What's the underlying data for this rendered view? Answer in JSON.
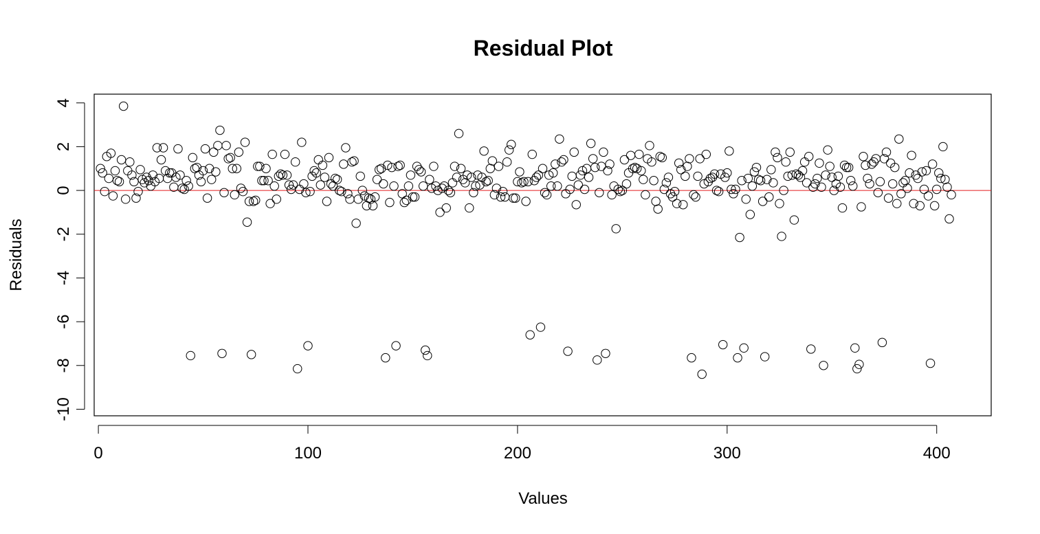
{
  "chart_data": {
    "type": "scatter",
    "title": "Residual Plot",
    "xlabel": "Values",
    "ylabel": "Residuals",
    "xlim": [
      -2,
      426
    ],
    "ylim": [
      -10.3,
      4.4
    ],
    "xticks": [
      0,
      100,
      200,
      300,
      400
    ],
    "xtick_labels": [
      "0",
      "100",
      "200",
      "300",
      "400"
    ],
    "yticks": [
      -10,
      -8,
      -6,
      -4,
      -2,
      0,
      2,
      4
    ],
    "ytick_labels": [
      "-10",
      "-8",
      "-6",
      "-4",
      "-2",
      "0",
      "2",
      "4"
    ],
    "reference_line": {
      "y": 0,
      "color": "#e31a1c"
    },
    "marker": "open-circle",
    "grid": false,
    "colors": {
      "points": "#000000",
      "reference": "#e31a1c"
    },
    "y": [
      1.0,
      0.8,
      -0.05,
      1.55,
      0.55,
      1.7,
      -0.25,
      0.9,
      0.45,
      0.4,
      1.4,
      3.85,
      -0.4,
      0.9,
      1.3,
      0.7,
      0.4,
      -0.35,
      -0.05,
      0.95,
      0.5,
      0.35,
      0.6,
      0.45,
      0.2,
      0.7,
      0.4,
      1.95,
      0.55,
      1.4,
      1.95,
      0.9,
      0.55,
      0.8,
      0.8,
      0.15,
      0.6,
      1.9,
      0.7,
      0.1,
      0.05,
      0.45,
      0.2,
      -7.55,
      1.5,
      1.0,
      1.05,
      0.7,
      0.4,
      0.9,
      1.9,
      -0.35,
      1.0,
      0.5,
      1.75,
      0.85,
      2.05,
      2.75,
      -7.45,
      -0.1,
      2.05,
      1.45,
      1.5,
      1.0,
      -0.2,
      1.0,
      1.75,
      0.1,
      -0.05,
      2.2,
      -1.45,
      -0.5,
      -7.5,
      -0.5,
      -0.45,
      1.1,
      1.1,
      0.45,
      0.45,
      1.0,
      0.45,
      -0.6,
      1.65,
      0.2,
      -0.4,
      0.65,
      0.75,
      0.7,
      1.65,
      0.7,
      0.25,
      0.05,
      0.25,
      1.3,
      -8.15,
      0.05,
      2.2,
      0.3,
      -0.1,
      -7.1,
      -0.05,
      0.65,
      0.9,
      0.8,
      1.4,
      0.25,
      1.15,
      0.6,
      -0.5,
      1.5,
      0.3,
      0.2,
      0.55,
      0.5,
      0.0,
      -0.05,
      1.2,
      1.95,
      -0.15,
      -0.4,
      1.3,
      1.35,
      -1.5,
      -0.4,
      0.65,
      0.0,
      -0.25,
      -0.7,
      -0.35,
      -0.4,
      -0.7,
      -0.3,
      0.5,
      0.95,
      1.0,
      0.3,
      -7.65,
      1.15,
      -0.55,
      1.05,
      0.2,
      -7.1,
      1.1,
      1.15,
      -0.15,
      -0.55,
      -0.45,
      0.2,
      0.7,
      -0.3,
      -0.3,
      1.1,
      0.95,
      0.85,
      0.2,
      -7.3,
      -7.55,
      0.5,
      0.1,
      1.1,
      0.2,
      0.0,
      -1.0,
      0.1,
      0.2,
      -0.8,
      0.0,
      -0.1,
      0.35,
      1.1,
      0.6,
      2.6,
      1.0,
      0.5,
      0.35,
      0.7,
      -0.8,
      0.6,
      -0.1,
      0.2,
      0.7,
      0.25,
      0.6,
      1.8,
      0.4,
      0.45,
      1.0,
      1.35,
      -0.2,
      0.1,
      1.1,
      -0.3,
      -0.05,
      -0.3,
      1.3,
      1.85,
      2.1,
      -0.35,
      -0.35,
      0.4,
      0.85,
      0.35,
      0.4,
      -0.5,
      0.4,
      -6.6,
      1.65,
      0.45,
      0.6,
      0.7,
      -6.25,
      1.0,
      -0.1,
      -0.2,
      0.7,
      0.2,
      0.8,
      1.2,
      0.2,
      2.35,
      1.3,
      1.4,
      -0.15,
      -7.35,
      0.05,
      0.65,
      1.75,
      -0.65,
      0.25,
      0.7,
      0.9,
      0.05,
      1.0,
      0.6,
      2.15,
      1.45,
      1.05,
      -7.75,
      -0.1,
      1.1,
      1.75,
      -7.45,
      0.9,
      1.2,
      -0.2,
      0.2,
      -1.75,
      0.05,
      -0.05,
      0.0,
      1.4,
      0.3,
      0.8,
      1.6,
      1.0,
      1.05,
      1.0,
      1.65,
      0.9,
      0.5,
      -0.2,
      1.45,
      2.05,
      1.3,
      0.45,
      -0.5,
      -0.85,
      1.55,
      1.5,
      0.05,
      0.35,
      0.6,
      -0.15,
      -0.3,
      -0.05,
      -0.6,
      1.25,
      0.95,
      -0.65,
      0.65,
      1.1,
      1.45,
      -7.65,
      -0.2,
      -0.3,
      0.65,
      1.45,
      -8.4,
      0.3,
      1.65,
      0.4,
      0.55,
      0.6,
      0.75,
      0.0,
      -0.05,
      0.75,
      -7.05,
      0.6,
      0.8,
      1.8,
      0.05,
      -0.15,
      0.05,
      -7.65,
      -2.15,
      0.45,
      -7.2,
      -0.4,
      0.55,
      -1.1,
      0.2,
      0.85,
      1.05,
      0.5,
      0.45,
      -0.5,
      -7.6,
      0.5,
      -0.3,
      0.95,
      0.35,
      1.75,
      1.5,
      -0.6,
      -2.1,
      0.0,
      1.3,
      0.65,
      1.75,
      0.7,
      -1.35,
      0.75,
      0.7,
      0.6,
      0.9,
      1.3,
      0.35,
      1.55,
      -7.25,
      0.15,
      0.3,
      0.55,
      1.25,
      0.15,
      -8.0,
      0.7,
      1.85,
      1.1,
      0.6,
      0.0,
      0.3,
      0.65,
      0.15,
      -0.8,
      1.15,
      1.05,
      1.05,
      0.45,
      0.2,
      -7.2,
      -8.15,
      -7.95,
      -0.75,
      1.55,
      1.15,
      0.55,
      0.3,
      1.2,
      1.3,
      1.45,
      -0.1,
      0.4,
      -6.95,
      1.45,
      1.75,
      -0.35,
      1.25,
      0.3,
      1.05,
      -0.6,
      2.35,
      -0.15,
      0.35,
      0.45,
      0.1,
      0.8,
      1.6,
      -0.6,
      0.7,
      0.55,
      -0.7,
      0.85,
      0.05,
      0.9,
      -0.25,
      -7.9,
      1.2,
      -0.7,
      0.05,
      0.8,
      0.55,
      2.0,
      0.5,
      0.15,
      -1.3,
      -0.2
    ]
  }
}
